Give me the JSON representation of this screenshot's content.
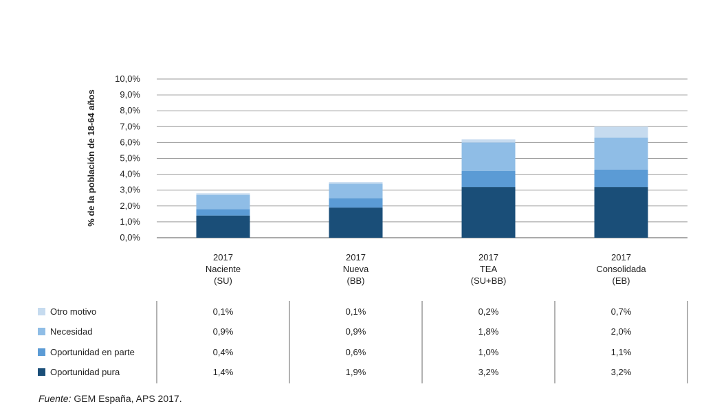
{
  "chart_data": {
    "type": "bar",
    "stacked": true,
    "ylabel": "% de la población de 18-64 años",
    "ylim": [
      0,
      10
    ],
    "yticks": [
      "0,0%",
      "1,0%",
      "2,0%",
      "3,0%",
      "4,0%",
      "5,0%",
      "6,0%",
      "7,0%",
      "8,0%",
      "9,0%",
      "10,0%"
    ],
    "grid": true,
    "categories": [
      {
        "year": "2017",
        "name": "Naciente",
        "abbr": "(SU)"
      },
      {
        "year": "2017",
        "name": "Nueva",
        "abbr": "(BB)"
      },
      {
        "year": "2017",
        "name": "TEA",
        "abbr": "(SU+BB)"
      },
      {
        "year": "2017",
        "name": "Consolidada",
        "abbr": "(EB)"
      }
    ],
    "series": [
      {
        "name": "Oportunidad pura",
        "color": "#1a4e78",
        "values": [
          1.4,
          1.9,
          3.2,
          3.2
        ],
        "labels": [
          "1,4%",
          "1,9%",
          "3,2%",
          "3,2%"
        ]
      },
      {
        "name": "Oportunidad en parte",
        "color": "#5b9bd5",
        "values": [
          0.4,
          0.6,
          1.0,
          1.1
        ],
        "labels": [
          "0,4%",
          "0,6%",
          "1,0%",
          "1,1%"
        ]
      },
      {
        "name": "Necesidad",
        "color": "#8fbde6",
        "values": [
          0.9,
          0.9,
          1.8,
          2.0
        ],
        "labels": [
          "0,9%",
          "0,9%",
          "1,8%",
          "2,0%"
        ]
      },
      {
        "name": "Otro motivo",
        "color": "#c6dbef",
        "values": [
          0.1,
          0.1,
          0.2,
          0.7
        ],
        "labels": [
          "0,1%",
          "0,1%",
          "0,2%",
          "0,7%"
        ]
      }
    ],
    "table_row_order": [
      "Otro motivo",
      "Necesidad",
      "Oportunidad en parte",
      "Oportunidad pura"
    ]
  },
  "source": {
    "label": "Fuente:",
    "text": " GEM España, APS 2017."
  }
}
